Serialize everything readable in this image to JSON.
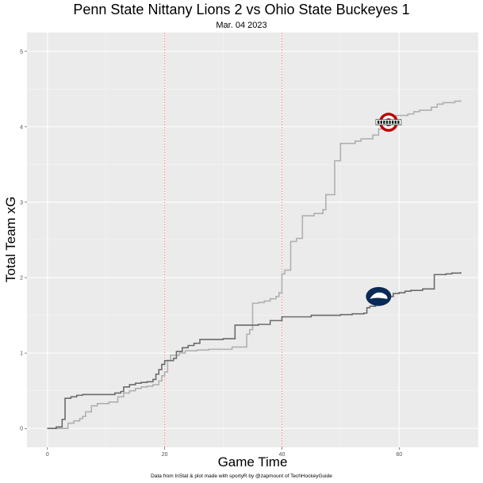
{
  "chart_data": {
    "type": "line",
    "title": "Penn State Nittany Lions 2 vs Ohio State Buckeyes 1",
    "subtitle": "Mar. 04 2023",
    "xlabel": "Game Time",
    "ylabel": "Total Team xG",
    "caption": "Data from InStat & plot made with sportyR by @zapmount of TechHockeyGuide",
    "xlim": [
      -3.5,
      73.5
    ],
    "ylim": [
      -0.25,
      5.25
    ],
    "x_ticks": [
      0,
      20,
      40,
      60
    ],
    "y_ticks": [
      0,
      1,
      2,
      3,
      4,
      5
    ],
    "grid": true,
    "period_markers": [
      20,
      40
    ],
    "series": [
      {
        "logo": "ohio-state-logo",
        "color": "#b0b0b0",
        "end_label_x": 58.2,
        "end_label_y": 4.06,
        "x": [
          0,
          3.5,
          4.5,
          5.5,
          6,
          6.5,
          7.5,
          8.5,
          10.5,
          12,
          13,
          14,
          15,
          16,
          17,
          18,
          19,
          19.5,
          20,
          20.5,
          21,
          22.5,
          23.5,
          25.5,
          27.5,
          31.5,
          34,
          34.5,
          35,
          36,
          37,
          38,
          39,
          39.5,
          40,
          40.5,
          41.5,
          42.5,
          43.5,
          45.5,
          47,
          47.5,
          49,
          50,
          52.5,
          53.5,
          55.5,
          56.5,
          57.5,
          58.5,
          59.5,
          61.5,
          62.5,
          63.5,
          65.5,
          66.5,
          67.5,
          69.5,
          70.5
        ],
        "y": [
          0,
          0.07,
          0.1,
          0.13,
          0.16,
          0.22,
          0.3,
          0.33,
          0.35,
          0.42,
          0.47,
          0.5,
          0.53,
          0.55,
          0.56,
          0.58,
          0.63,
          0.7,
          0.75,
          0.9,
          0.97,
          1.0,
          1.03,
          1.04,
          1.05,
          1.08,
          1.25,
          1.31,
          1.66,
          1.67,
          1.69,
          1.72,
          1.75,
          1.8,
          2.05,
          2.1,
          2.48,
          2.52,
          2.82,
          2.85,
          2.9,
          3.1,
          3.55,
          3.78,
          3.81,
          3.84,
          3.89,
          3.97,
          4.03,
          4.11,
          4.15,
          4.17,
          4.2,
          4.22,
          4.26,
          4.3,
          4.32,
          4.34,
          4.35
        ]
      },
      {
        "logo": "penn-state-logo",
        "color": "#6b6b6b",
        "end_label_x": 56.5,
        "end_label_y": 1.75,
        "x": [
          0,
          1.5,
          2.5,
          3,
          4,
          5,
          6,
          10,
          11.5,
          12.5,
          13,
          14,
          15,
          16,
          17,
          18,
          18.5,
          19,
          19.5,
          20,
          21.5,
          22,
          23,
          24,
          25,
          26,
          30,
          32,
          36,
          38,
          40,
          45,
          48,
          50,
          52,
          54,
          54.5,
          55,
          56,
          57,
          59,
          60,
          61,
          62,
          63,
          64,
          66,
          68,
          69,
          70.5
        ],
        "y": [
          0,
          0.02,
          0.12,
          0.4,
          0.42,
          0.44,
          0.45,
          0.45,
          0.47,
          0.49,
          0.55,
          0.58,
          0.6,
          0.61,
          0.62,
          0.65,
          0.72,
          0.78,
          0.85,
          0.9,
          0.93,
          1.02,
          1.07,
          1.1,
          1.13,
          1.18,
          1.19,
          1.37,
          1.38,
          1.43,
          1.48,
          1.5,
          1.5,
          1.51,
          1.52,
          1.53,
          1.6,
          1.62,
          1.67,
          1.75,
          1.79,
          1.8,
          1.82,
          1.83,
          1.83,
          1.85,
          2.04,
          2.05,
          2.06,
          2.07
        ]
      }
    ]
  }
}
